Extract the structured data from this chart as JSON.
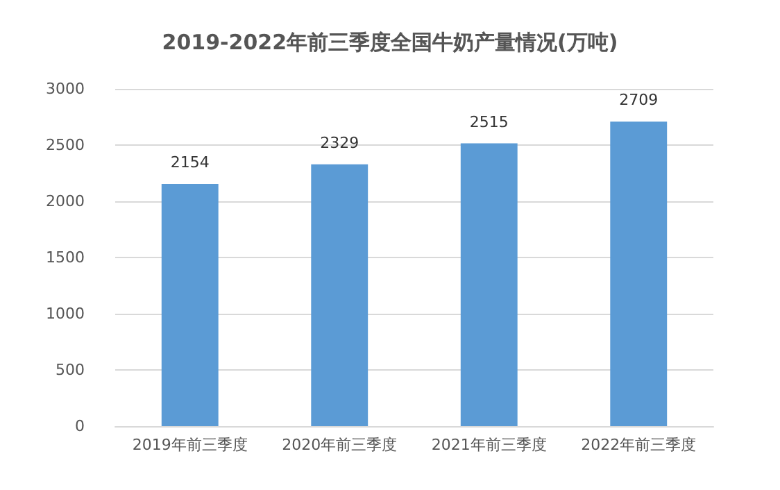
{
  "chart_data": {
    "type": "bar",
    "title": "2019-2022年前三季度全国牛奶产量情况(万吨)",
    "categories": [
      "2019年前三季度",
      "2020年前三季度",
      "2021年前三季度",
      "2022年前三季度"
    ],
    "values": [
      2154,
      2329,
      2515,
      2709
    ],
    "color": "#5b9bd5",
    "ylim": [
      0,
      3000
    ],
    "yticks": [
      0,
      500,
      1000,
      1500,
      2000,
      2500,
      3000
    ],
    "grid": "y",
    "data_labels": true
  }
}
